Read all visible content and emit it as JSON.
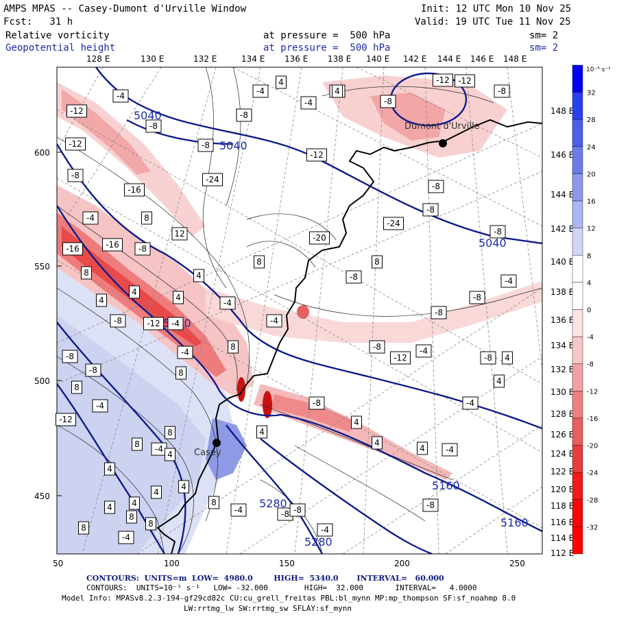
{
  "header": {
    "title": "AMPS MPAS -- Casey-Dumont d'Urville Window",
    "init": "Init: 12 UTC Mon 10 Nov 25",
    "forecast": "Fcst:   31 h",
    "valid": "Valid: 19 UTC Tue 11 Nov 25",
    "field1": {
      "name": "Relative vorticity",
      "pressure": "at pressure =  500 hPa",
      "smoothing": "sm= 2"
    },
    "field2": {
      "name": "Geopotential height",
      "pressure": "at pressure =  500 hPa",
      "smoothing": "sm= 2"
    }
  },
  "map": {
    "top_lon_labels": [
      "128 E",
      "130 E",
      "132 E",
      "134 E",
      "136 E",
      "138 E",
      "140 E",
      "142 E",
      "144 E",
      "146 E",
      "148 E"
    ],
    "right_lat_labels": [
      "148 E",
      "146 E",
      "144 E",
      "142 E",
      "140 E",
      "138 E",
      "136 E",
      "134 E",
      "132 E",
      "130 E",
      "128 E",
      "126 E",
      "124 E",
      "122 E",
      "120 E",
      "118 E",
      "116 E",
      "114 E",
      "112 E"
    ],
    "x_ticks": [
      "50",
      "100",
      "150",
      "200",
      "250"
    ],
    "y_ticks": [
      "600",
      "550",
      "500",
      "450"
    ],
    "stations": [
      "Casey",
      "Dumont d'Urville"
    ],
    "height_labels": [
      "5040",
      "5040",
      "5040",
      "5160",
      "5160",
      "5160",
      "5280",
      "5280"
    ],
    "vort_labels": [
      "-8",
      "-4",
      "4",
      "-8",
      "-4",
      "-12",
      "-4",
      "-8",
      "-8",
      "-12",
      "-8",
      "-8",
      "-12",
      "-8",
      "-12",
      "-8",
      "-24",
      "-16",
      "-8",
      "-8",
      "-4",
      "8",
      "-24",
      "-8",
      "12",
      "-20",
      "-16",
      "-16",
      "-8",
      "8",
      "8",
      "8",
      "-8",
      "-4",
      "4",
      "4",
      "4",
      "4",
      "-4",
      "-4",
      "-8",
      "-12",
      "-4",
      "-8",
      "-8",
      "-8",
      "-12",
      "-4",
      "-8",
      "4",
      "-8",
      "-4",
      "8",
      "-8",
      "8",
      "4",
      "-4",
      "-8",
      "4",
      "4",
      "4",
      "-4",
      "4",
      "-12",
      "-4",
      "8",
      "8",
      "4",
      "4",
      "4",
      "8",
      "4",
      "8",
      "8",
      "8",
      "-4",
      "-8",
      "-4",
      "-8",
      "4",
      "-4",
      "4",
      "-4",
      "8",
      "-8",
      "-4",
      "-4",
      "4",
      "4",
      "-12"
    ]
  },
  "colorbar": {
    "unit": "10⁻⁵ s⁻¹",
    "levels": [
      "32",
      "28",
      "24",
      "20",
      "16",
      "12",
      "8",
      "4",
      "0",
      "-4",
      "-8",
      "-12",
      "-16",
      "-20",
      "-24",
      "-28",
      "-32"
    ]
  },
  "footer": {
    "contours1": "CONTOURS:  UNITS=m  LOW=  4980.0        HIGH=  5340.0       INTERVAL=   60.000",
    "contours2": "CONTOURS:  UNITS=10⁻⁵ s⁻¹   LOW= -32.000        HIGH=  32.000       INTERVAL=   4.0000",
    "model_info": "Model Info: MPASv8.2.3-194-gf29cd82c CU:cu_grell_freitas PBL:bl_mynn MP:mp_thompson SF:sf_noahmp 8.0",
    "model_info2": "LW:rrtmg_lw SW:rrtmg_sw SFLAY:sf_mynn"
  },
  "colors": {
    "height_contour": "#0d1a8c",
    "neg_vort": "#e8383a",
    "pos_vort": "#6070e0",
    "coast": "#000000"
  }
}
